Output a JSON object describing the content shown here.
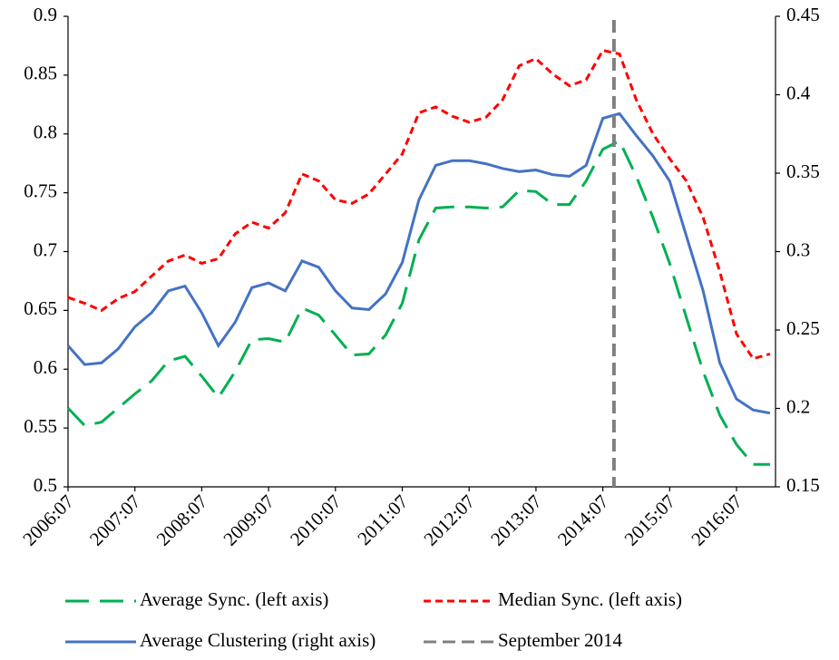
{
  "chart_data": {
    "type": "line",
    "x": [
      "2006:07",
      "2006:10",
      "2007:01",
      "2007:04",
      "2007:07",
      "2007:10",
      "2008:01",
      "2008:04",
      "2008:07",
      "2008:10",
      "2009:01",
      "2009:04",
      "2009:07",
      "2009:10",
      "2010:01",
      "2010:04",
      "2010:07",
      "2010:10",
      "2011:01",
      "2011:04",
      "2011:07",
      "2011:10",
      "2012:01",
      "2012:04",
      "2012:07",
      "2012:10",
      "2013:01",
      "2013:04",
      "2013:07",
      "2013:10",
      "2014:01",
      "2014:04",
      "2014:07",
      "2014:10",
      "2015:01",
      "2015:04",
      "2015:07",
      "2015:10",
      "2016:01",
      "2016:04",
      "2016:07",
      "2016:10",
      "2017:01"
    ],
    "xlim": [
      "2006:07",
      "2017:02"
    ],
    "xticks": [
      "2006:07",
      "2007:07",
      "2008:07",
      "2009:07",
      "2010:07",
      "2011:07",
      "2012:07",
      "2013:07",
      "2014:07",
      "2015:07",
      "2016:07"
    ],
    "ylim": [
      0.5,
      0.9
    ],
    "yticks": [
      0.5,
      0.55,
      0.6,
      0.65,
      0.7,
      0.75,
      0.8,
      0.85,
      0.9
    ],
    "y2lim": [
      0.15,
      0.45
    ],
    "y2ticks": [
      0.15,
      0.2,
      0.25,
      0.3,
      0.35,
      0.4,
      0.45
    ],
    "series": [
      {
        "name": "Average Sync. (left axis)",
        "color": "#00b050",
        "style": "long-dash",
        "values": [
          0.567,
          0.552,
          0.555,
          0.567,
          0.579,
          0.59,
          0.607,
          0.611,
          0.594,
          0.576,
          0.598,
          0.625,
          0.626,
          0.623,
          0.652,
          0.646,
          0.629,
          0.612,
          0.613,
          0.629,
          0.656,
          0.71,
          0.737,
          0.738,
          0.738,
          0.737,
          0.738,
          0.752,
          0.751,
          0.74,
          0.74,
          0.76,
          0.787,
          0.794,
          0.764,
          0.729,
          0.69,
          0.644,
          0.598,
          0.561,
          0.536,
          0.519,
          0.519
        ]
      },
      {
        "name": "Median Sync. (left axis)",
        "color": "#ff0000",
        "style": "short-dash",
        "values": [
          0.661,
          0.656,
          0.65,
          0.66,
          0.666,
          0.679,
          0.692,
          0.697,
          0.69,
          0.694,
          0.715,
          0.725,
          0.72,
          0.733,
          0.766,
          0.76,
          0.744,
          0.741,
          0.749,
          0.766,
          0.783,
          0.818,
          0.823,
          0.815,
          0.81,
          0.814,
          0.829,
          0.858,
          0.864,
          0.851,
          0.841,
          0.846,
          0.871,
          0.868,
          0.829,
          0.8,
          0.779,
          0.76,
          0.729,
          0.683,
          0.63,
          0.609,
          0.613
        ]
      },
      {
        "name": "Average Clustering (right axis)",
        "color": "#4472c4",
        "style": "solid",
        "axis": "y2",
        "values": [
          0.24,
          0.228,
          0.229,
          0.238,
          0.252,
          0.261,
          0.275,
          0.278,
          0.261,
          0.24,
          0.255,
          0.277,
          0.28,
          0.275,
          0.294,
          0.29,
          0.275,
          0.264,
          0.263,
          0.273,
          0.293,
          0.333,
          0.355,
          0.358,
          0.358,
          0.356,
          0.353,
          0.351,
          0.352,
          0.349,
          0.348,
          0.355,
          0.385,
          0.388,
          0.374,
          0.361,
          0.345,
          0.31,
          0.275,
          0.229,
          0.206,
          0.199,
          0.197
        ]
      }
    ],
    "vline": {
      "name": "September 2014",
      "x": "2014:09",
      "color": "#808080",
      "style": "dash"
    }
  }
}
